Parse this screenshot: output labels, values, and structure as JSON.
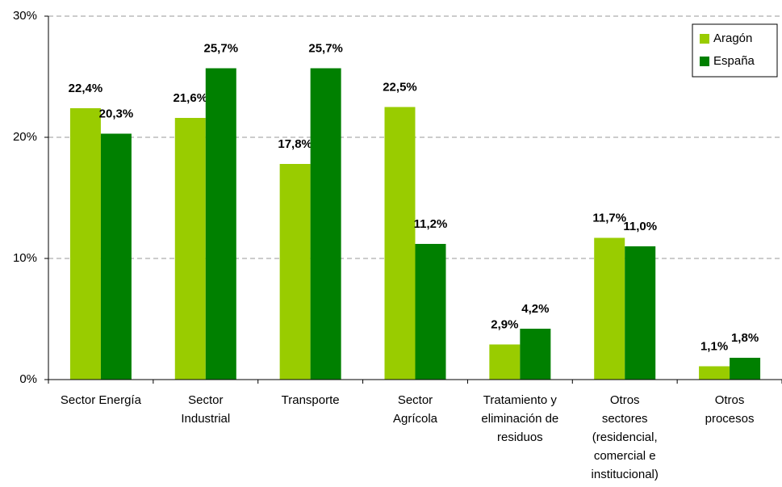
{
  "chart_data": {
    "type": "bar",
    "categories": [
      "Sector Energía",
      "Sector\nIndustrial",
      "Transporte",
      "Sector\nAgrícola",
      "Tratamiento y\neliminación de\nresiduos",
      "Otros\nsectores\n(residencial,\ncomercial e\ninstitucional)",
      "Otros\nprocesos"
    ],
    "series": [
      {
        "name": "Aragón",
        "color": "#99cc00",
        "values": [
          22.4,
          21.6,
          17.8,
          22.5,
          2.9,
          11.7,
          1.1
        ],
        "value_labels": [
          "22,4%",
          "21,6%",
          "17,8%",
          "22,5%",
          "2,9%",
          "11,7%",
          "1,1%"
        ]
      },
      {
        "name": "España",
        "color": "#008000",
        "values": [
          20.3,
          25.7,
          25.7,
          11.2,
          4.2,
          11.0,
          1.8
        ],
        "value_labels": [
          "20,3%",
          "25,7%",
          "25,7%",
          "11,2%",
          "4,2%",
          "11,0%",
          "1,8%"
        ]
      }
    ],
    "ylim": [
      0,
      30
    ],
    "yticks": [
      {
        "value": 0,
        "label": "0%"
      },
      {
        "value": 10,
        "label": "10%"
      },
      {
        "value": 20,
        "label": "20%"
      },
      {
        "value": 30,
        "label": "30%"
      }
    ],
    "grid": true,
    "legend": "top-right"
  }
}
